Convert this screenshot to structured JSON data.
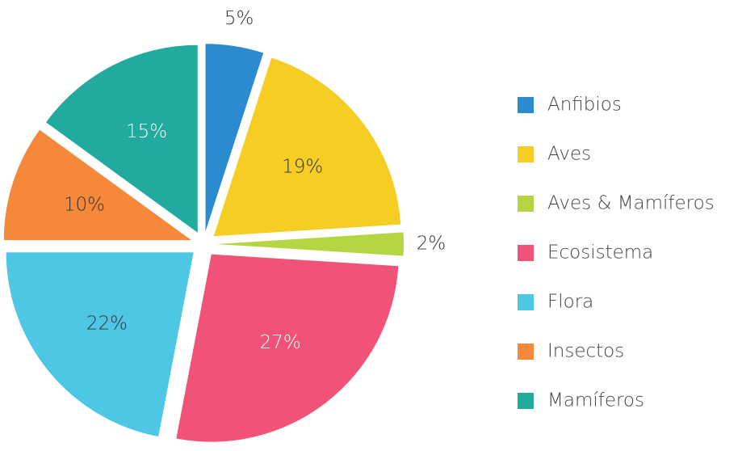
{
  "chart_data": {
    "type": "pie",
    "categories": [
      "Anfibios",
      "Aves",
      "Aves & Mamíferos",
      "Ecosistema",
      "Flora",
      "Insectos",
      "Mamíferos"
    ],
    "values": [
      5,
      19,
      2,
      27,
      22,
      10,
      15
    ],
    "value_labels": [
      "5%",
      "19%",
      "2%",
      "27%",
      "22%",
      "10%",
      "15%"
    ],
    "colors": [
      "#2a8bcf",
      "#f6cd23",
      "#b6d545",
      "#f05377",
      "#4ec7e4",
      "#f6883a",
      "#22aa9f"
    ],
    "legend": "right"
  }
}
